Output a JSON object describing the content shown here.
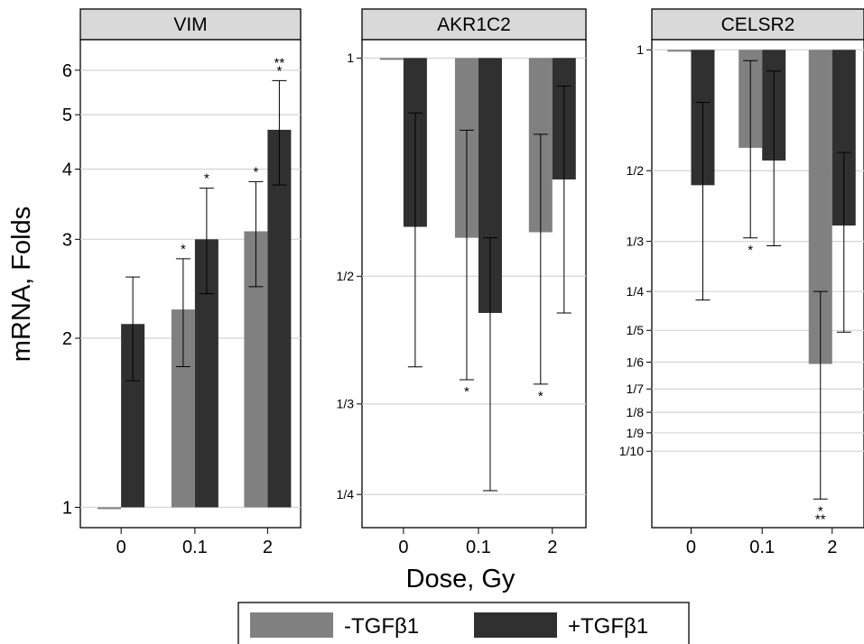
{
  "chart_data": {
    "type": "bar",
    "xlabel": "Dose, Gy",
    "ylabel": "mRNA, Folds",
    "categories": [
      "0",
      "0.1",
      "2"
    ],
    "legend": {
      "position": "bottom",
      "entries": [
        {
          "label": "-TGFβ1",
          "color": "#808080"
        },
        {
          "label": "+TGFβ1",
          "color": "#303030"
        }
      ]
    },
    "panels": [
      {
        "title": "VIM",
        "yscale": "log",
        "ylim": [
          0.92,
          6.8
        ],
        "yticks": [
          {
            "value": 1,
            "label": "1"
          },
          {
            "value": 2,
            "label": "2"
          },
          {
            "value": 3,
            "label": "3"
          },
          {
            "value": 4,
            "label": "4"
          },
          {
            "value": 5,
            "label": "5"
          },
          {
            "value": 6,
            "label": "6"
          }
        ],
        "series": [
          {
            "name": "-TGFβ1",
            "values": [
              1.0,
              2.25,
              3.1
            ],
            "err_low": [
              null,
              1.78,
              2.47
            ],
            "err_high": [
              null,
              2.77,
              3.8
            ],
            "sig": [
              "",
              "*",
              "*"
            ]
          },
          {
            "name": "+TGFβ1",
            "values": [
              2.12,
              3.0,
              4.7
            ],
            "err_low": [
              1.68,
              2.4,
              3.75
            ],
            "err_high": [
              2.57,
              3.7,
              5.75
            ],
            "sig": [
              "",
              "*",
              "**\n*"
            ]
          }
        ]
      },
      {
        "title": "AKR1C2",
        "yscale": "log",
        "ylim": [
          0.225,
          1.06
        ],
        "yticks": [
          {
            "value": 1,
            "label": "1"
          },
          {
            "value": 0.5,
            "label": "1/2"
          },
          {
            "value": 0.3333,
            "label": "1/3"
          },
          {
            "value": 0.25,
            "label": "1/4"
          }
        ],
        "series": [
          {
            "name": "-TGFβ1",
            "values": [
              1.0,
              0.565,
              0.575
            ],
            "err_low": [
              null,
              0.36,
              0.355
            ],
            "err_high": [
              null,
              0.795,
              0.785
            ],
            "sig": [
              "",
              "*",
              "*"
            ]
          },
          {
            "name": "+TGFβ1",
            "values": [
              0.585,
              0.445,
              0.68
            ],
            "err_low": [
              0.375,
              0.253,
              0.445
            ],
            "err_high": [
              0.84,
              0.565,
              0.915
            ],
            "sig": [
              "",
              "",
              ""
            ]
          }
        ]
      },
      {
        "title": "CELSR2",
        "yscale": "log",
        "ylim": [
          0.0645,
          1.06
        ],
        "yticks": [
          {
            "value": 1,
            "label": "1"
          },
          {
            "value": 0.5,
            "label": "1/2"
          },
          {
            "value": 0.3333,
            "label": "1/3"
          },
          {
            "value": 0.25,
            "label": "1/4"
          },
          {
            "value": 0.2,
            "label": "1/5"
          },
          {
            "value": 0.1667,
            "label": "1/6"
          },
          {
            "value": 0.1429,
            "label": "1/7"
          },
          {
            "value": 0.125,
            "label": "1/8"
          },
          {
            "value": 0.1111,
            "label": "1/9"
          },
          {
            "value": 0.1,
            "label": "1/10"
          }
        ],
        "series": [
          {
            "name": "-TGFβ1",
            "values": [
              1.0,
              0.57,
              0.165
            ],
            "err_low": [
              null,
              0.34,
              0.076
            ],
            "err_high": [
              null,
              0.94,
              0.25
            ],
            "sig": [
              "",
              "*",
              "*\n**"
            ]
          },
          {
            "name": "+TGFβ1",
            "values": [
              0.46,
              0.53,
              0.365
            ],
            "err_low": [
              0.238,
              0.325,
              0.198
            ],
            "err_high": [
              0.74,
              0.885,
              0.555
            ],
            "sig": [
              "",
              "",
              ""
            ]
          }
        ]
      }
    ]
  }
}
